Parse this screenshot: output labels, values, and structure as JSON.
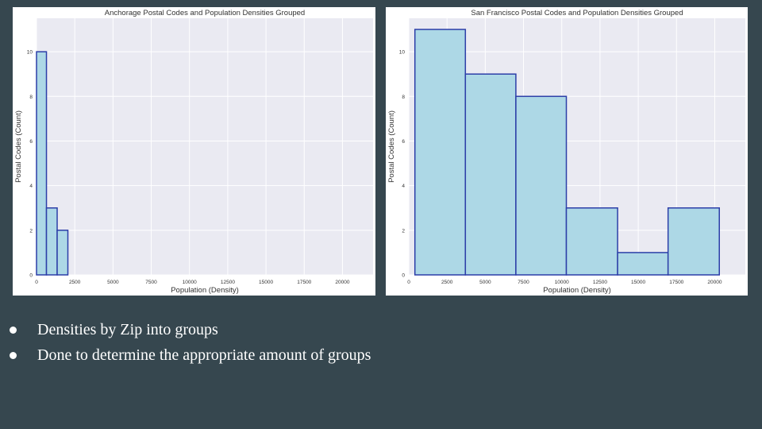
{
  "chart_data": [
    {
      "type": "bar",
      "title": "Anchorage Postal Codes and Population Densities Grouped",
      "xlabel": "Population (Density)",
      "ylabel": "Postal Codes (Count)",
      "xlim": [
        0,
        22000
      ],
      "ylim": [
        0,
        11.5
      ],
      "x_ticks": [
        0,
        2500,
        5000,
        7500,
        10000,
        12500,
        15000,
        17500,
        20000
      ],
      "y_ticks": [
        0,
        2,
        4,
        6,
        8,
        10
      ],
      "grid": true,
      "bins": [
        {
          "start": 0,
          "end": 650,
          "count": 10
        },
        {
          "start": 650,
          "end": 1350,
          "count": 3
        },
        {
          "start": 1350,
          "end": 2050,
          "count": 2
        }
      ],
      "colors": {
        "fill": "#add8e6",
        "edge": "#2c3ea8",
        "plot_bg": "#eaeaf2",
        "grid": "#ffffff"
      }
    },
    {
      "type": "bar",
      "title": "San Francisco Postal Codes and Population Densities Grouped",
      "xlabel": "Population (Density)",
      "ylabel": "Postal Codes (Count)",
      "xlim": [
        0,
        22000
      ],
      "ylim": [
        0,
        11.5
      ],
      "x_ticks": [
        0,
        2500,
        5000,
        7500,
        10000,
        12500,
        15000,
        17500,
        20000
      ],
      "y_ticks": [
        0,
        2,
        4,
        6,
        8,
        10
      ],
      "grid": true,
      "bins": [
        {
          "start": 400,
          "end": 3700,
          "count": 11
        },
        {
          "start": 3700,
          "end": 7000,
          "count": 9
        },
        {
          "start": 7000,
          "end": 10300,
          "count": 8
        },
        {
          "start": 10300,
          "end": 13650,
          "count": 3
        },
        {
          "start": 13650,
          "end": 16950,
          "count": 1
        },
        {
          "start": 16950,
          "end": 20300,
          "count": 3
        }
      ],
      "colors": {
        "fill": "#add8e6",
        "edge": "#2c3ea8",
        "plot_bg": "#eaeaf2",
        "grid": "#ffffff"
      }
    }
  ],
  "bullets": [
    "Densities by Zip into groups",
    "Done to determine the appropriate amount of groups"
  ]
}
